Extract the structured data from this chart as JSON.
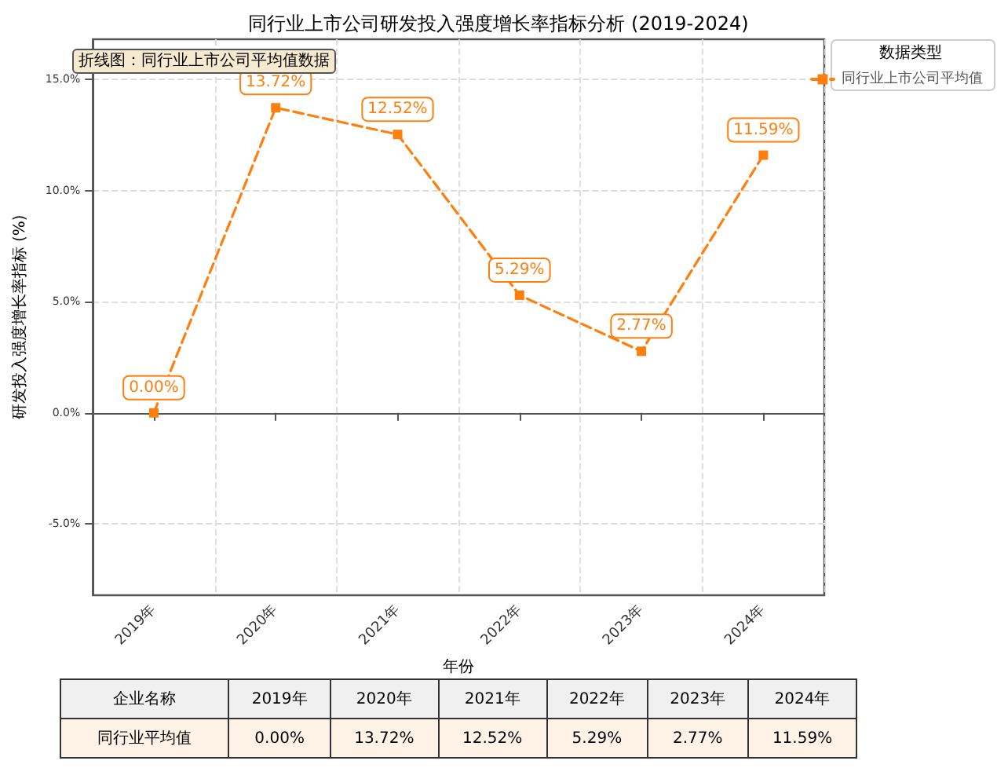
{
  "chart_data": {
    "type": "line",
    "title": "同行业上市公司研发投入强度增长率指标分析 (2019-2024)",
    "xlabel": "年份",
    "ylabel": "研发投入强度增长率指标 (%)",
    "legend_title": "数据类型",
    "annotations": [
      "折线图：同行业上市公司平均值数据",
      "企业名称",
      "同行业平均值"
    ],
    "categories": [
      "2019年",
      "2020年",
      "2021年",
      "2022年",
      "2023年",
      "2024年"
    ],
    "series": [
      {
        "name": "同行业上市公司平均值",
        "color": "#ff7f0e",
        "values": [
          0.0,
          13.72,
          12.52,
          5.29,
          2.77,
          11.59
        ],
        "value_labels": [
          "0.00%",
          "13.72%",
          "12.52%",
          "5.29%",
          "2.77%",
          "11.59%"
        ]
      }
    ],
    "ylim": [
      -8.2,
      16.8
    ],
    "yticks": [
      {
        "value": -5,
        "label": "-5.0%"
      },
      {
        "value": 0,
        "label": "0.0%"
      },
      {
        "value": 5,
        "label": "5.0%"
      },
      {
        "value": 10,
        "label": "10.0%"
      },
      {
        "value": 15,
        "label": "15.0%"
      }
    ],
    "grid": true,
    "legend": "top right",
    "marker": "square",
    "line_style": "dashed"
  }
}
